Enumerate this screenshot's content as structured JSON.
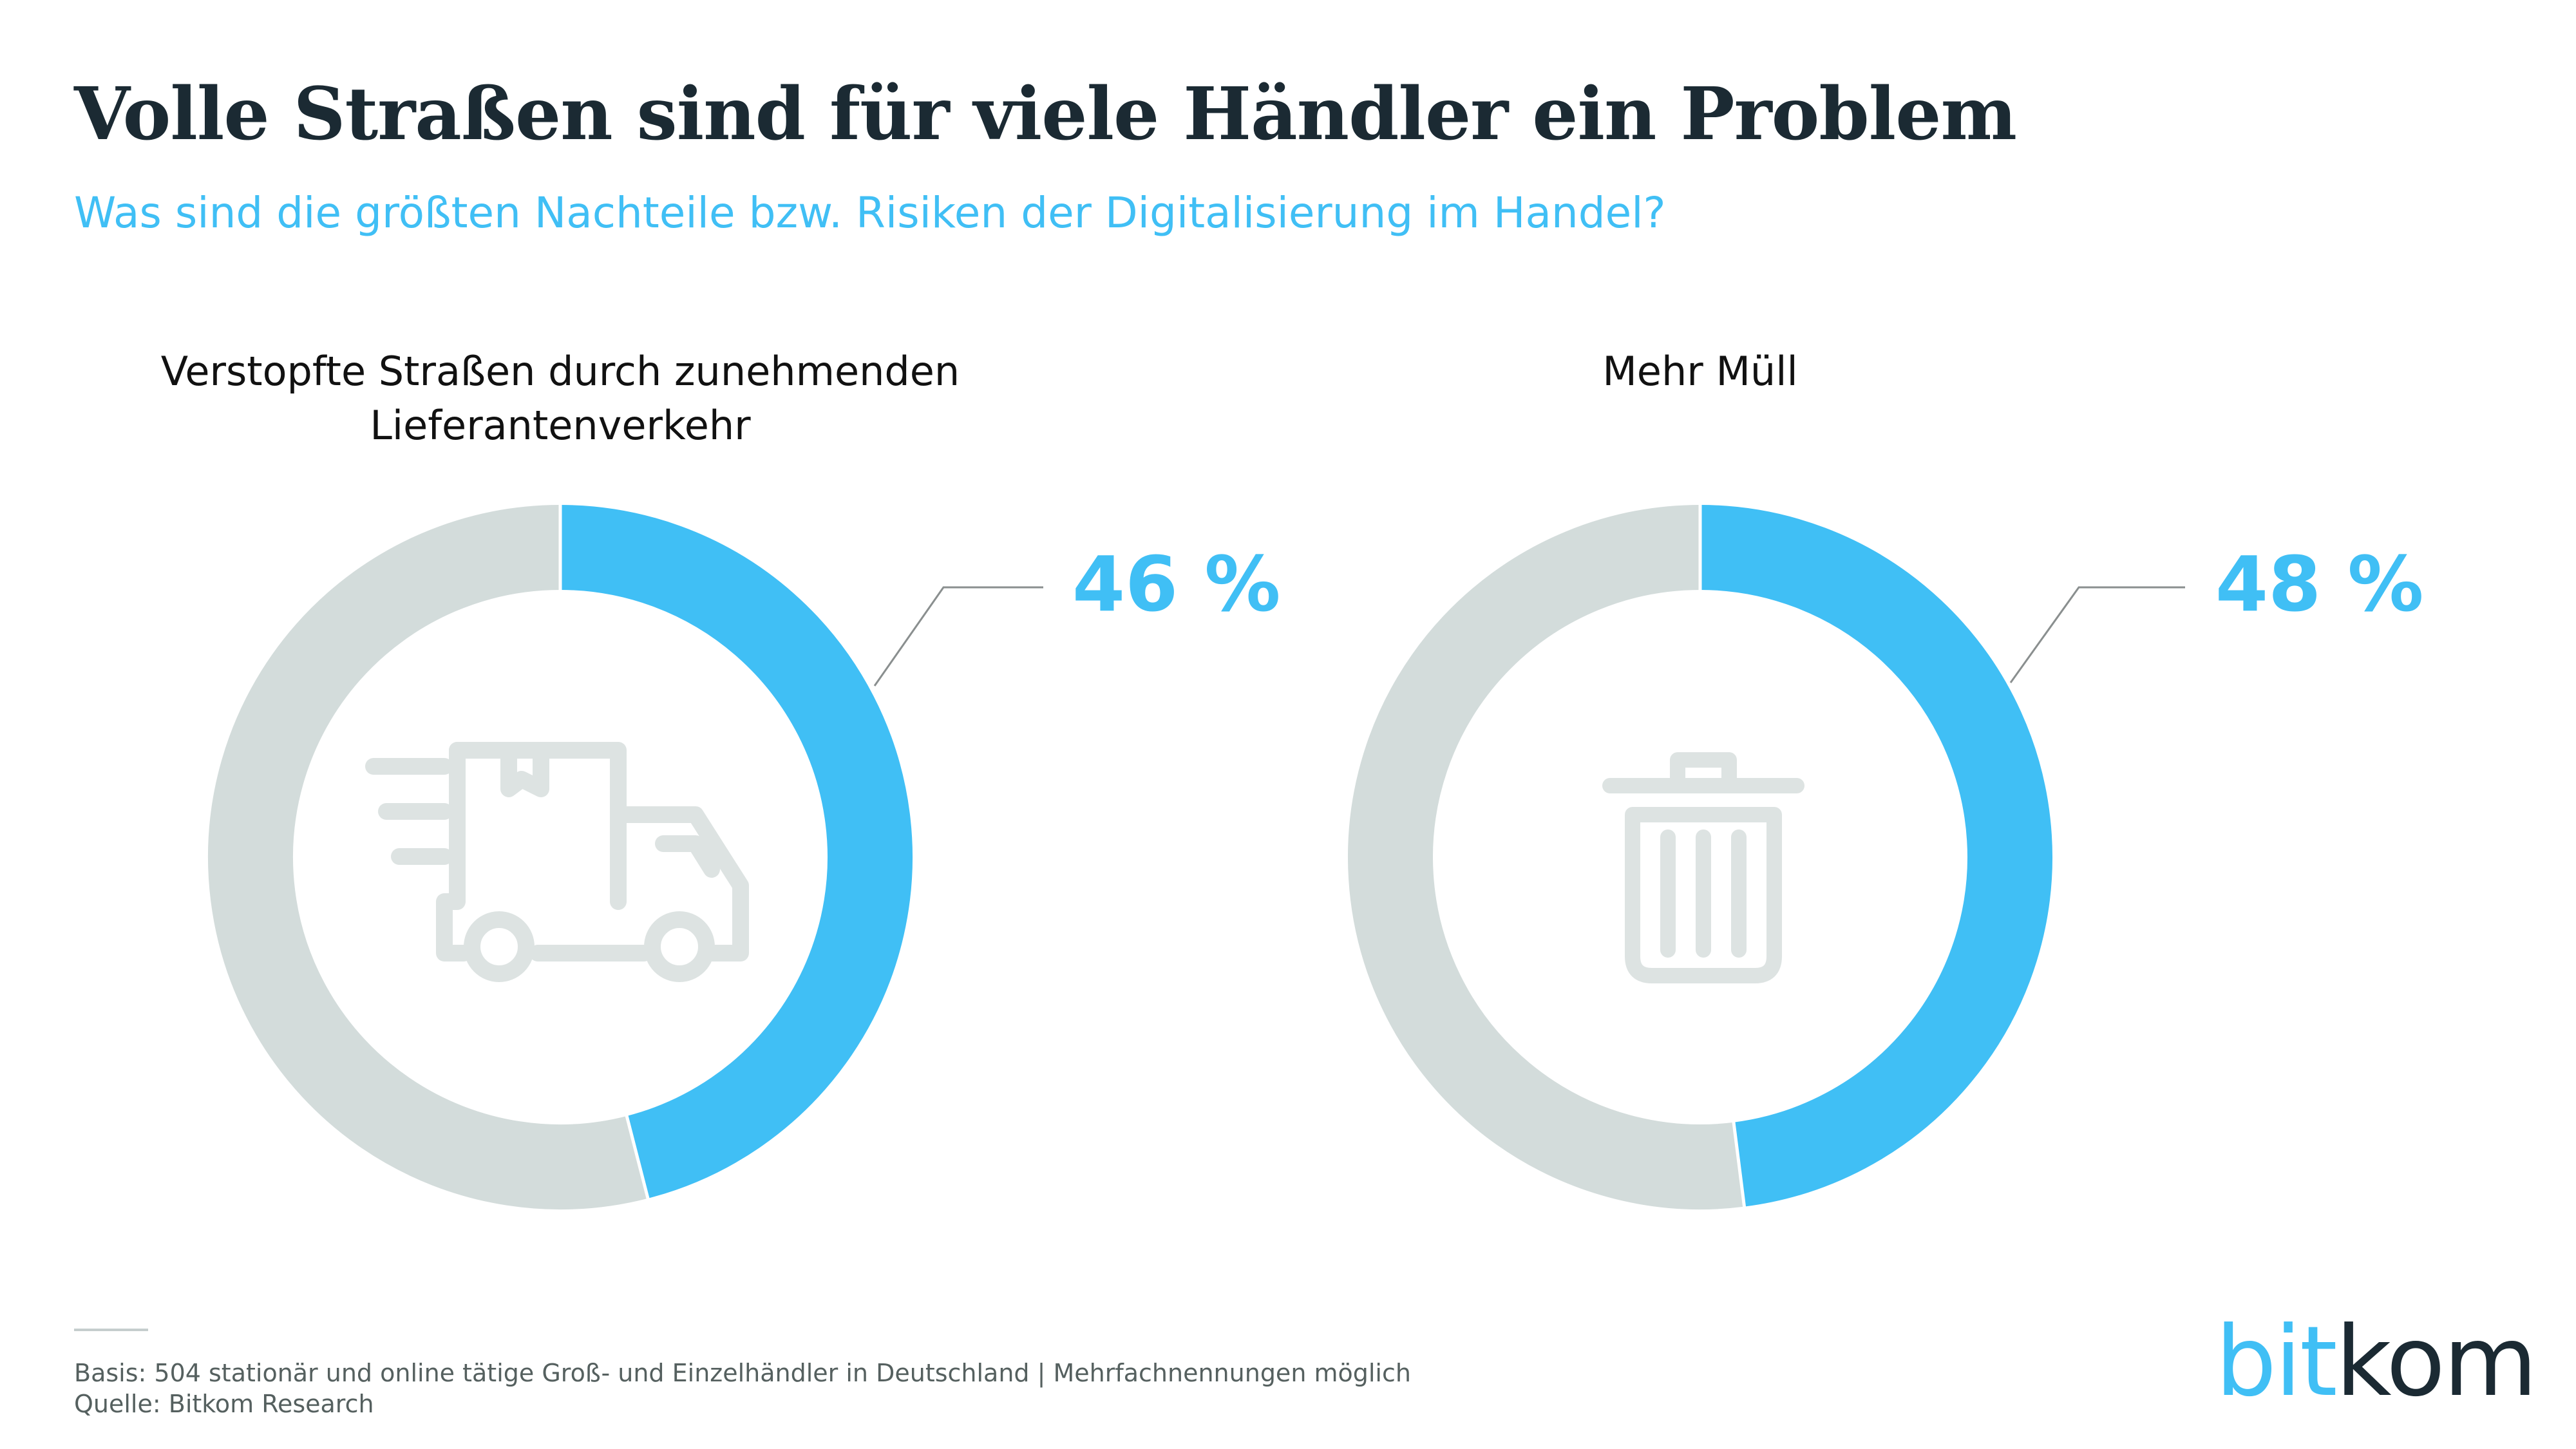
{
  "title": "Volle Straßen sind für viele Händler ein Problem",
  "subtitle": "Was sind die größten Nachteile bzw. Risiken der Digitalisierung im Handel?",
  "colors": {
    "accent": "#40bff5",
    "remainder": "#d3dcdb",
    "icon": "#dde3e2",
    "title": "#1b2a33"
  },
  "chart_data": [
    {
      "type": "pie",
      "variant": "donut",
      "title_lines": [
        "Verstopfte Straßen durch zunehmenden",
        "Lieferantenverkehr"
      ],
      "value": 46,
      "unit": "%",
      "label": "46 %",
      "icon": "delivery-truck-icon"
    },
    {
      "type": "pie",
      "variant": "donut",
      "title_lines": [
        "Mehr Müll"
      ],
      "value": 48,
      "unit": "%",
      "label": "48 %",
      "icon": "trash-can-icon"
    }
  ],
  "footer": {
    "basis": "Basis: 504 stationär und online tätige Groß- und Einzelhändler in Deutschland | Mehrfachnennungen möglich",
    "source": "Quelle: Bitkom Research"
  },
  "logo": {
    "part1": "bit",
    "part2": "kom"
  }
}
